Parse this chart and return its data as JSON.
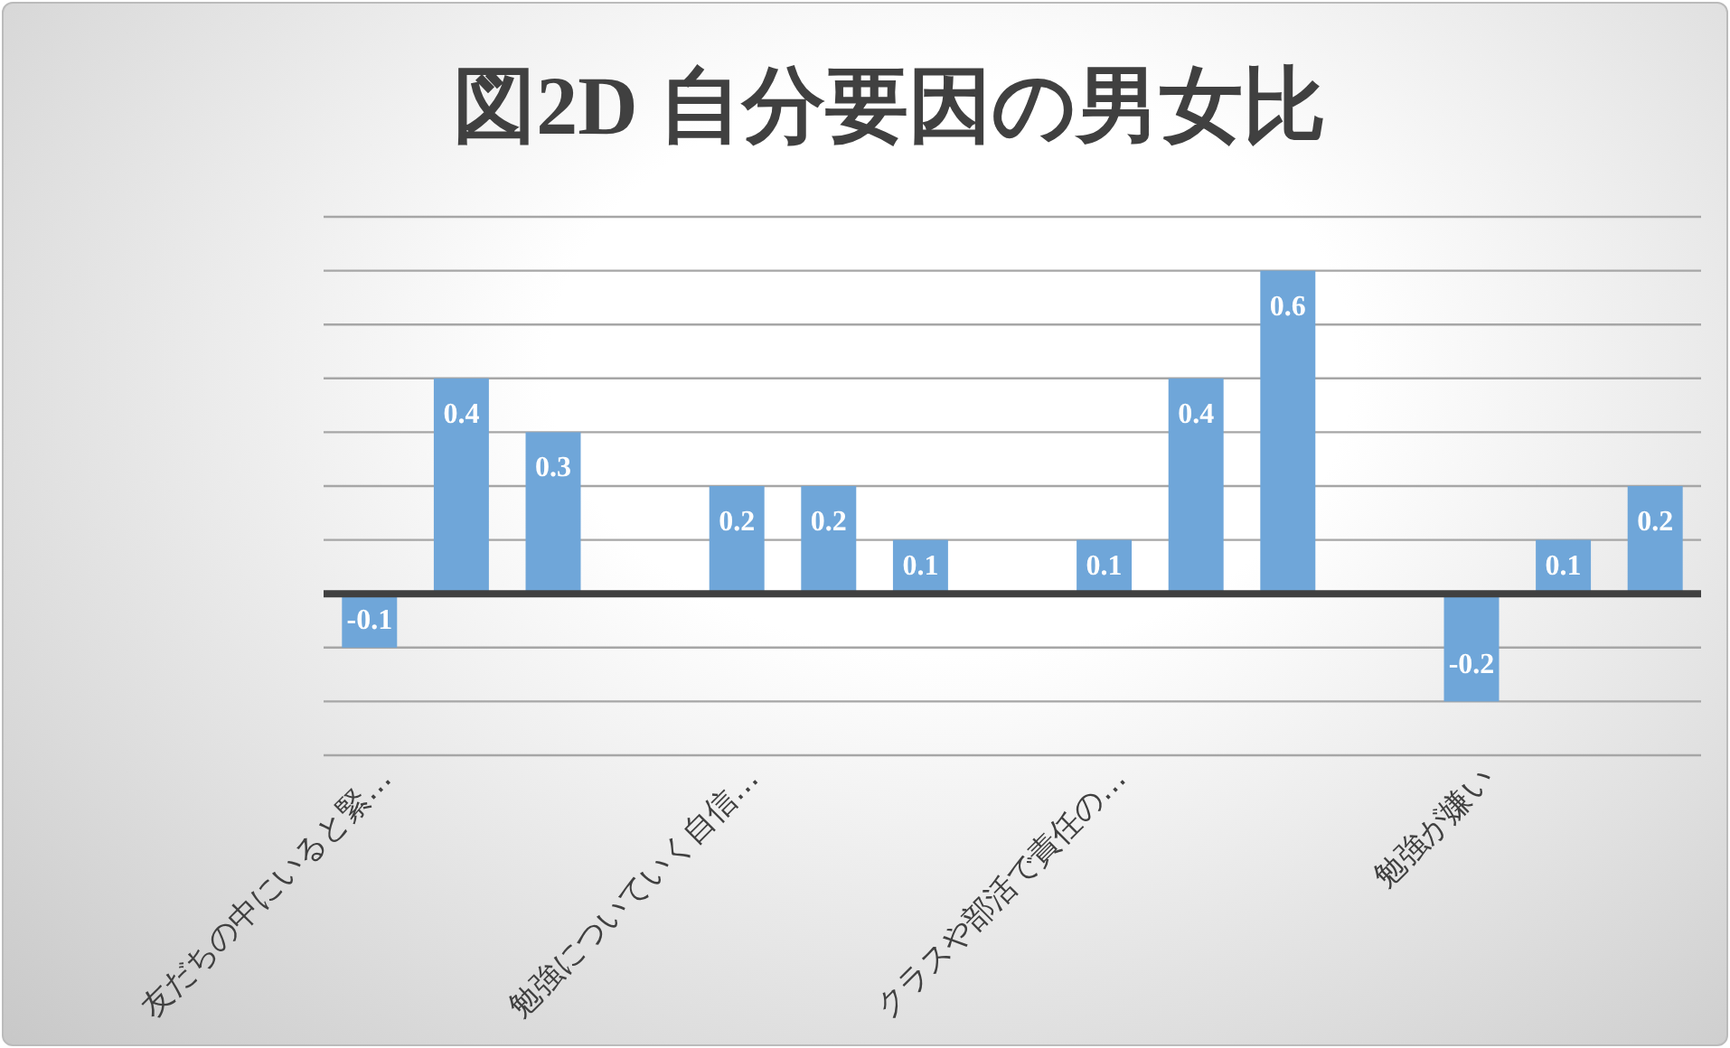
{
  "chart_data": {
    "type": "bar",
    "title": "図2D 自分要因の男女比",
    "categories": [
      "友だちの中にいると緊…",
      null,
      null,
      null,
      "勉強についていく自信…",
      null,
      null,
      null,
      "クラスや部活で責任の…",
      null,
      null,
      null,
      "勉強が嫌い",
      null,
      null
    ],
    "values": [
      -0.1,
      0.4,
      0.3,
      null,
      0.2,
      0.2,
      0.1,
      null,
      0.1,
      0.4,
      0.6,
      null,
      -0.2,
      0.1,
      0.2
    ],
    "color": "#6fa6d9",
    "data_labels": true,
    "ylim": [
      -0.3,
      0.7
    ],
    "yticks": [
      {
        "value": -0.3,
        "label": null
      },
      {
        "value": -0.2,
        "label": null
      },
      {
        "value": -0.1,
        "label": null
      },
      {
        "value": 0,
        "label": null
      },
      {
        "value": 0.1,
        "label": null
      },
      {
        "value": 0.2,
        "label": null
      },
      {
        "value": 0.3,
        "label": null
      },
      {
        "value": 0.4,
        "label": null
      },
      {
        "value": 0.5,
        "label": null
      },
      {
        "value": 0.6,
        "label": null
      },
      {
        "value": 0.7,
        "label": null
      }
    ],
    "grid": "y",
    "tick_labels": "x"
  }
}
